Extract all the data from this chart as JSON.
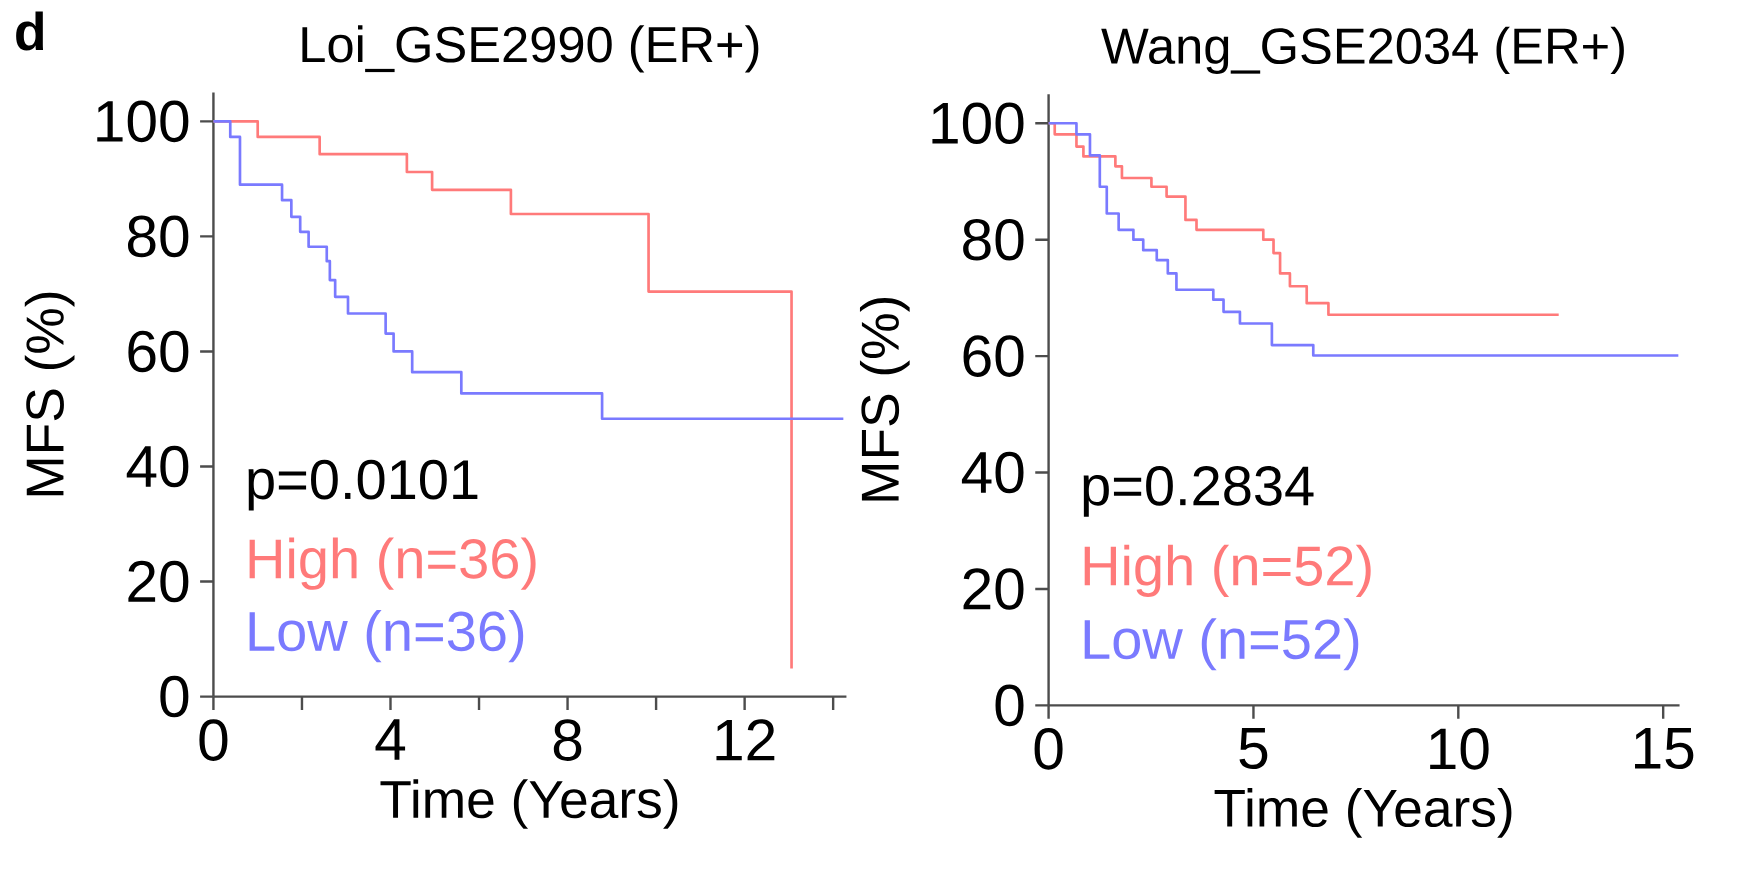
{
  "chart_data": [
    {
      "type": "step",
      "title": "Loi_GSE2990 (ER+)",
      "xlabel": "Time (Years)",
      "ylabel": "MFS (%)",
      "xlim": [
        0,
        14.3
      ],
      "ylim": [
        0,
        105
      ],
      "xticks": [
        0,
        {
          "value": 2,
          "label": null
        },
        4,
        {
          "value": 6,
          "label": null
        },
        8,
        {
          "value": 10,
          "label": null
        },
        12,
        {
          "value": 14,
          "label": null
        }
      ],
      "yticks": [
        0,
        20,
        40,
        60,
        80,
        100
      ],
      "annotations": [
        "d",
        "p=0.0101"
      ],
      "series": [
        {
          "name": "High (n=36)",
          "color": "#ff7a7a",
          "x": [
            0,
            1.0,
            2.4,
            4.37,
            4.94,
            6.72,
            9.83,
            13.06
          ],
          "values": [
            100,
            97.3,
            94.3,
            91.2,
            88.1,
            83.9,
            70.4,
            4.9
          ]
        },
        {
          "name": "Low (n=36)",
          "color": "#7a7aff",
          "x": [
            0,
            0.38,
            0.6,
            1.55,
            1.76,
            1.96,
            2.15,
            2.56,
            2.63,
            2.75,
            3.04,
            3.89,
            4.07,
            4.49,
            5.6,
            8.78,
            14.23
          ],
          "values": [
            100,
            97.3,
            89.0,
            86.3,
            83.4,
            80.8,
            78.2,
            75.7,
            72.4,
            69.5,
            66.6,
            63.1,
            60.0,
            56.4,
            52.7,
            48.3,
            48.3
          ]
        }
      ]
    },
    {
      "type": "step",
      "title": "Wang_GSE2034 (ER+)",
      "xlabel": "Time (Years)",
      "ylabel": "MFS (%)",
      "xlim": [
        0,
        15.4
      ],
      "ylim": [
        0,
        105
      ],
      "xticks": [
        0,
        5,
        10,
        15
      ],
      "yticks": [
        0,
        20,
        40,
        60,
        80,
        100
      ],
      "annotations": [
        "p=0.2834"
      ],
      "series": [
        {
          "name": "High (n=52)",
          "color": "#ff7a7a",
          "x": [
            0,
            0.15,
            0.68,
            0.85,
            1.63,
            1.79,
            2.51,
            2.88,
            3.34,
            3.61,
            5.24,
            5.49,
            5.65,
            5.89,
            6.3,
            6.83,
            12.45
          ],
          "values": [
            100,
            98.1,
            96.0,
            94.3,
            92.6,
            90.6,
            89.1,
            87.4,
            83.4,
            81.7,
            80.0,
            77.7,
            74.2,
            72.0,
            69.1,
            67.1,
            67.1
          ]
        },
        {
          "name": "Low (n=52)",
          "color": "#7a7aff",
          "x": [
            0,
            0.68,
            1.01,
            1.25,
            1.42,
            1.71,
            2.07,
            2.31,
            2.64,
            2.91,
            3.12,
            4.02,
            4.27,
            4.67,
            5.45,
            6.46,
            15.37
          ],
          "values": [
            100,
            98.1,
            94.5,
            89.1,
            84.5,
            81.7,
            80.0,
            78.2,
            76.5,
            74.2,
            71.4,
            69.7,
            67.6,
            65.6,
            61.9,
            60.1,
            60.1
          ]
        }
      ]
    }
  ]
}
